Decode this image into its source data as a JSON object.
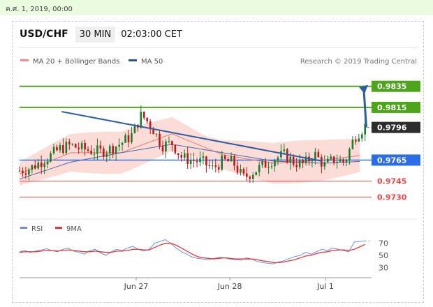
{
  "date_label": "ค.ศ. 1, 2019, 00:00",
  "header": {
    "symbol": "USD/CHF",
    "timeframe": "30 MIN",
    "time": "02:03:00 CET"
  },
  "legend": {
    "ma20": "MA 20 + Bollinger Bands",
    "ma50": "MA 50",
    "credit": "Research © 2019 Trading Central"
  },
  "indicator_legend": {
    "rsi": "RSI",
    "ma9": "9MA"
  },
  "colors": {
    "support_red": "#e34a4a",
    "resistance_green": "#4ea51b",
    "level_blue": "#2a6de6",
    "trend_arrow": "#2d5da0",
    "candle_green": "#1e7b2e",
    "candle_red": "#c01616",
    "band_fill": "#fbd6d0"
  },
  "chart_data": [
    {
      "type": "candlestick",
      "x_ticks": [
        "Jun 27",
        "Jun 28",
        "Jul 1"
      ],
      "current_price": "0.9796",
      "levels": [
        {
          "label": "0.9835",
          "value": 0.9835,
          "style": "resistance"
        },
        {
          "label": "0.9815",
          "value": 0.9815,
          "style": "resistance"
        },
        {
          "label": "0.9796",
          "value": 0.9796,
          "style": "current"
        },
        {
          "label": "0.9765",
          "value": 0.9765,
          "style": "pivot"
        },
        {
          "label": "0.9745",
          "value": 0.9745,
          "style": "support"
        },
        {
          "label": "0.9730",
          "value": 0.973,
          "style": "support"
        }
      ],
      "ylim": [
        0.9717,
        0.9852
      ],
      "trendline": {
        "from": [
          0.12,
          0.9811
        ],
        "to": [
          0.48,
          0.9764
        ]
      },
      "forecast": {
        "from": [
          0.56,
          0.9796
        ],
        "to": [
          0.69,
          0.9835
        ]
      },
      "price_path": [
        [
          0.0,
          0.9755
        ],
        [
          0.04,
          0.9757
        ],
        [
          0.08,
          0.9763
        ],
        [
          0.12,
          0.9769
        ],
        [
          0.16,
          0.9776
        ],
        [
          0.2,
          0.9779
        ],
        [
          0.24,
          0.9776
        ],
        [
          0.28,
          0.9774
        ],
        [
          0.32,
          0.9773
        ],
        [
          0.36,
          0.9776
        ],
        [
          0.4,
          0.9781
        ],
        [
          0.44,
          0.9788
        ],
        [
          0.48,
          0.9808
        ],
        [
          0.52,
          0.9797
        ],
        [
          0.56,
          0.9779
        ],
        [
          0.6,
          0.9781
        ],
        [
          0.64,
          0.9767
        ],
        [
          0.68,
          0.9765
        ],
        [
          0.72,
          0.9763
        ],
        [
          0.76,
          0.9757
        ],
        [
          0.8,
          0.9764
        ],
        [
          0.84,
          0.9763
        ],
        [
          0.88,
          0.9748
        ],
        [
          0.92,
          0.9754
        ],
        [
          0.96,
          0.976
        ],
        [
          1.0,
          0.9766
        ],
        [
          1.04,
          0.977
        ],
        [
          1.08,
          0.9763
        ],
        [
          1.12,
          0.9761
        ],
        [
          1.16,
          0.9771
        ],
        [
          1.2,
          0.976
        ],
        [
          1.24,
          0.9766
        ],
        [
          1.28,
          0.9763
        ],
        [
          1.32,
          0.9788
        ],
        [
          1.36,
          0.9797
        ]
      ],
      "ma20_path": [
        [
          0.0,
          0.9752
        ],
        [
          0.2,
          0.9772
        ],
        [
          0.4,
          0.9772
        ],
        [
          0.6,
          0.979
        ],
        [
          0.8,
          0.977
        ],
        [
          1.0,
          0.9762
        ],
        [
          1.2,
          0.9765
        ],
        [
          1.36,
          0.977
        ]
      ],
      "ma50_path": [
        [
          0.0,
          0.9747
        ],
        [
          0.2,
          0.9763
        ],
        [
          0.4,
          0.9772
        ],
        [
          0.6,
          0.978
        ],
        [
          0.8,
          0.9772
        ],
        [
          1.0,
          0.9764
        ],
        [
          1.2,
          0.9762
        ],
        [
          1.36,
          0.9764
        ]
      ]
    },
    {
      "type": "line",
      "series": [
        {
          "name": "RSI"
        },
        {
          "name": "9MA"
        }
      ],
      "y_ticks": [
        70,
        50,
        30
      ],
      "ylim": [
        20,
        80
      ],
      "rsi": [
        56,
        58,
        55,
        57,
        59,
        61,
        58,
        56,
        60,
        62,
        57,
        55,
        52,
        58,
        60,
        54,
        50,
        56,
        60,
        58,
        62,
        65,
        60,
        57,
        60,
        70,
        73,
        76,
        70,
        62,
        56,
        52,
        47,
        45,
        44,
        43,
        45,
        47,
        46,
        44,
        43,
        42,
        46,
        44,
        40,
        38,
        37,
        36,
        39,
        41,
        45,
        48,
        50,
        55,
        52,
        56,
        60,
        58,
        62,
        60,
        58,
        56,
        72,
        73,
        74
      ],
      "ma9": [
        55,
        56,
        56,
        56,
        57,
        58,
        58,
        57,
        58,
        59,
        58,
        57,
        56,
        56,
        57,
        56,
        55,
        55,
        57,
        57,
        58,
        60,
        60,
        59,
        59,
        63,
        67,
        70,
        70,
        67,
        62,
        57,
        52,
        48,
        46,
        45,
        44,
        45,
        46,
        45,
        44,
        44,
        44,
        44,
        43,
        41,
        40,
        38,
        38,
        39,
        41,
        43,
        46,
        49,
        50,
        53,
        55,
        56,
        58,
        59,
        59,
        58,
        60,
        64,
        68
      ]
    }
  ]
}
